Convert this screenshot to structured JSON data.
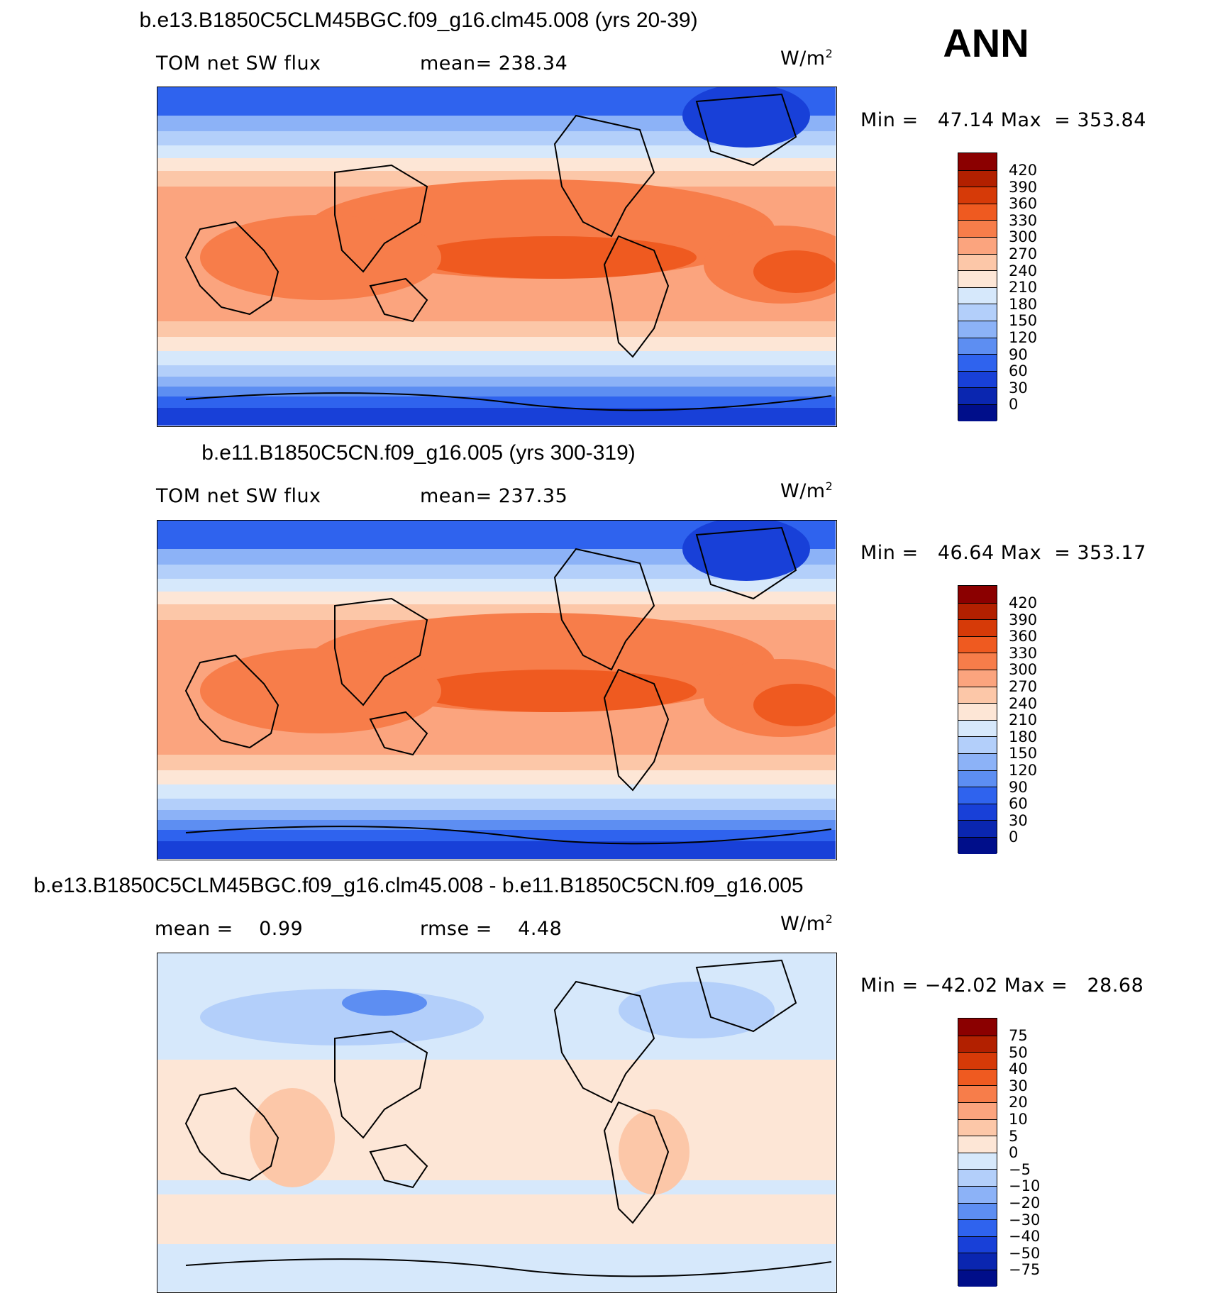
{
  "season": "ANN",
  "units_base": "W/m",
  "units_exp": "2",
  "panels": [
    {
      "title": "b.e13.B1850C5CLM45BGC.f09_g16.clm45.008 (yrs 20-39)",
      "left_label": "TOM net SW flux",
      "mid_label": "mean= 238.34",
      "minmax": "Min =   47.14 Max  = 353.84",
      "colorbar": {
        "levels": [
          "420",
          "390",
          "360",
          "330",
          "300",
          "270",
          "240",
          "210",
          "180",
          "150",
          "120",
          "90",
          "60",
          "30",
          "0"
        ],
        "colors": [
          "#8b0000",
          "#b22000",
          "#d63a08",
          "#ef5a20",
          "#f77d4a",
          "#fba47e",
          "#fcc7a8",
          "#fde6d6",
          "#d6e8fb",
          "#b3cffa",
          "#8cb2f7",
          "#5d8ef2",
          "#2f63ee",
          "#1840d8",
          "#0a26b0",
          "#000e8a"
        ]
      }
    },
    {
      "title": "b.e11.B1850C5CN.f09_g16.005 (yrs 300-319)",
      "left_label": "TOM net SW flux",
      "mid_label": "mean= 237.35",
      "minmax": "Min =   46.64 Max  = 353.17",
      "colorbar": {
        "levels": [
          "420",
          "390",
          "360",
          "330",
          "300",
          "270",
          "240",
          "210",
          "180",
          "150",
          "120",
          "90",
          "60",
          "30",
          "0"
        ],
        "colors": [
          "#8b0000",
          "#b22000",
          "#d63a08",
          "#ef5a20",
          "#f77d4a",
          "#fba47e",
          "#fcc7a8",
          "#fde6d6",
          "#d6e8fb",
          "#b3cffa",
          "#8cb2f7",
          "#5d8ef2",
          "#2f63ee",
          "#1840d8",
          "#0a26b0",
          "#000e8a"
        ]
      }
    },
    {
      "title": "b.e13.B1850C5CLM45BGC.f09_g16.clm45.008 - b.e11.B1850C5CN.f09_g16.005",
      "left_label": "mean =    0.99",
      "mid_label": "rmse =    4.48",
      "minmax": "Min = −42.02 Max =   28.68",
      "colorbar": {
        "levels": [
          "75",
          "50",
          "40",
          "30",
          "20",
          "10",
          "5",
          "0",
          "−5",
          "−10",
          "−20",
          "−30",
          "−40",
          "−50",
          "−75"
        ],
        "colors": [
          "#8b0000",
          "#b22000",
          "#d63a08",
          "#ef5a20",
          "#f77d4a",
          "#fba47e",
          "#fcc7a8",
          "#fde6d6",
          "#d6e8fb",
          "#b3cffa",
          "#8cb2f7",
          "#5d8ef2",
          "#2f63ee",
          "#1840d8",
          "#0a26b0",
          "#000e8a"
        ]
      }
    }
  ]
}
